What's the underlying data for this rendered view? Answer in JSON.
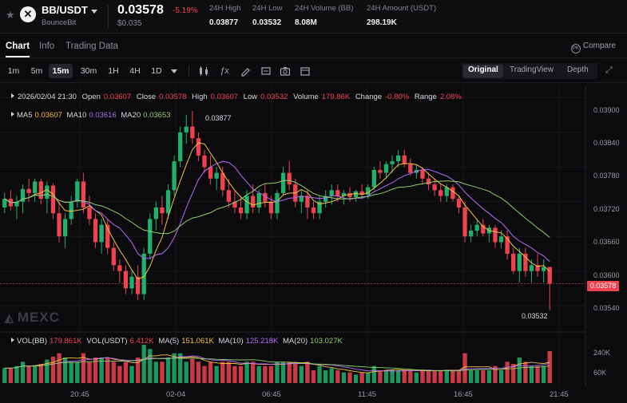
{
  "header": {
    "pair": "BB/USDT",
    "project": "BounceBit",
    "coin_glyph": "✕",
    "last_price": "0.03578",
    "change_pct": "-5.19%",
    "usd_price": "$0.035",
    "stats": [
      {
        "label": "24H High",
        "value": "0.03877"
      },
      {
        "label": "24H Low",
        "value": "0.03532"
      },
      {
        "label": "24H Volume (BB)",
        "value": "8.08M"
      },
      {
        "label": "24H Amount (USDT)",
        "value": "298.19K"
      }
    ]
  },
  "tabs": [
    "Chart",
    "Info",
    "Trading Data"
  ],
  "compare_label": "Compare",
  "compare_badge": "PK",
  "toolbar": {
    "timeframes": [
      "1m",
      "5m",
      "15m",
      "30m",
      "1H",
      "4H",
      "1D"
    ],
    "active_timeframe": "15m",
    "views": [
      "Original",
      "TradingView",
      "Depth"
    ],
    "active_view": "Original"
  },
  "ohlc": {
    "date": "2026/02/04 21:30",
    "open_label": "Open",
    "open": "0.03607",
    "close_label": "Close",
    "close": "0.03578",
    "high_label": "High",
    "high": "0.03607",
    "low_label": "Low",
    "low": "0.03532",
    "volume_label": "Volume",
    "volume": "179.86K",
    "change_label": "Change",
    "change": "-0.80%",
    "range_label": "Range",
    "range": "2.08%"
  },
  "ma": [
    {
      "label": "MA5",
      "value": "0.03607",
      "color": "#f5c242"
    },
    {
      "label": "MA10",
      "value": "0.03616",
      "color": "#b36cf2"
    },
    {
      "label": "MA20",
      "value": "0.03653",
      "color": "#8fcf6a"
    }
  ],
  "vol": {
    "bb_label": "VOL(BB)",
    "bb_value": "179.861K",
    "usdt_label": "VOL(USDT)",
    "usdt_value": "6.412K",
    "ma5_label": "MA(5)",
    "ma5_value": "151.061K",
    "ma10_label": "MA(10)",
    "ma10_value": "125.218K",
    "ma20_label": "MA(20)",
    "ma20_value": "103.027K"
  },
  "watermark": "MEXC",
  "price_tag": "0.03578",
  "high_marker": "0.03877",
  "low_marker": "0.03532",
  "y_axis": [
    "0.03900",
    "0.03840",
    "0.03780",
    "0.03720",
    "0.03660",
    "0.03600",
    "0.03540"
  ],
  "vol_axis": [
    "240K",
    "60K"
  ],
  "x_axis": [
    "20:45",
    "02-04",
    "06:45",
    "11:45",
    "16:45",
    "21:45"
  ],
  "colors": {
    "up": "#20b26c",
    "down": "#f0434f",
    "ma5": "#f5c242",
    "ma10": "#b36cf2",
    "ma20": "#8fcf6a"
  },
  "chart_data": {
    "type": "candlestick",
    "price_range": [
      0.035,
      0.0392
    ],
    "candles": [
      [
        0.0371,
        0.03735,
        0.037,
        0.03725
      ],
      [
        0.03725,
        0.0374,
        0.03705,
        0.03712
      ],
      [
        0.03712,
        0.0373,
        0.0369,
        0.0372
      ],
      [
        0.0372,
        0.0375,
        0.037,
        0.03742
      ],
      [
        0.03742,
        0.0376,
        0.0372,
        0.03735
      ],
      [
        0.03735,
        0.0376,
        0.0372,
        0.03755
      ],
      [
        0.03755,
        0.0376,
        0.03715,
        0.03725
      ],
      [
        0.03725,
        0.03755,
        0.037,
        0.03748
      ],
      [
        0.03748,
        0.03752,
        0.0369,
        0.037
      ],
      [
        0.037,
        0.0372,
        0.0365,
        0.0366
      ],
      [
        0.0366,
        0.037,
        0.0364,
        0.0369
      ],
      [
        0.0369,
        0.0373,
        0.0368,
        0.0372
      ],
      [
        0.0372,
        0.0376,
        0.0371,
        0.03755
      ],
      [
        0.03755,
        0.0377,
        0.037,
        0.0371
      ],
      [
        0.0371,
        0.0373,
        0.0368,
        0.0369
      ],
      [
        0.0369,
        0.037,
        0.0364,
        0.0365
      ],
      [
        0.0365,
        0.0369,
        0.0363,
        0.0368
      ],
      [
        0.0368,
        0.0369,
        0.0363,
        0.0364
      ],
      [
        0.0364,
        0.0365,
        0.036,
        0.0361
      ],
      [
        0.0361,
        0.0362,
        0.0358,
        0.036
      ],
      [
        0.036,
        0.0361,
        0.0356,
        0.0357
      ],
      [
        0.0357,
        0.036,
        0.0356,
        0.0359
      ],
      [
        0.0359,
        0.0361,
        0.0355,
        0.0356
      ],
      [
        0.0356,
        0.0364,
        0.0355,
        0.0363
      ],
      [
        0.0363,
        0.037,
        0.0362,
        0.0369
      ],
      [
        0.0369,
        0.0372,
        0.0367,
        0.0371
      ],
      [
        0.0371,
        0.0373,
        0.0368,
        0.037
      ],
      [
        0.037,
        0.0375,
        0.0369,
        0.0374
      ],
      [
        0.0374,
        0.038,
        0.0373,
        0.0379
      ],
      [
        0.0379,
        0.0385,
        0.0378,
        0.0384
      ],
      [
        0.0384,
        0.0387,
        0.0382,
        0.0385
      ],
      [
        0.0385,
        0.03877,
        0.0382,
        0.0383
      ],
      [
        0.0383,
        0.0384,
        0.0379,
        0.038
      ],
      [
        0.038,
        0.0381,
        0.0377,
        0.0378
      ],
      [
        0.0378,
        0.038,
        0.0375,
        0.0376
      ],
      [
        0.0376,
        0.0378,
        0.0374,
        0.0377
      ],
      [
        0.0377,
        0.0378,
        0.0373,
        0.0374
      ],
      [
        0.0374,
        0.0376,
        0.0371,
        0.0372
      ],
      [
        0.0372,
        0.0374,
        0.037,
        0.0371
      ],
      [
        0.0371,
        0.0373,
        0.0369,
        0.037
      ],
      [
        0.037,
        0.0374,
        0.0369,
        0.0373
      ],
      [
        0.0373,
        0.0375,
        0.037,
        0.0371
      ],
      [
        0.0371,
        0.0374,
        0.037,
        0.03735
      ],
      [
        0.03735,
        0.0375,
        0.0371,
        0.0372
      ],
      [
        0.0372,
        0.0373,
        0.0369,
        0.037
      ],
      [
        0.037,
        0.0374,
        0.0369,
        0.03735
      ],
      [
        0.03735,
        0.0378,
        0.0373,
        0.0377
      ],
      [
        0.0377,
        0.0379,
        0.0374,
        0.0375
      ],
      [
        0.0375,
        0.0376,
        0.0371,
        0.0372
      ],
      [
        0.0372,
        0.0374,
        0.037,
        0.0373
      ],
      [
        0.0373,
        0.0374,
        0.0369,
        0.0371
      ],
      [
        0.0371,
        0.0372,
        0.0369,
        0.037
      ],
      [
        0.037,
        0.0373,
        0.0369,
        0.0372
      ],
      [
        0.0372,
        0.0374,
        0.0371,
        0.0373
      ],
      [
        0.0373,
        0.0375,
        0.03715,
        0.0374
      ],
      [
        0.0374,
        0.0375,
        0.0372,
        0.0373
      ],
      [
        0.0373,
        0.0374,
        0.03715,
        0.03735
      ],
      [
        0.03735,
        0.03745,
        0.0372,
        0.03728
      ],
      [
        0.03728,
        0.0374,
        0.0372,
        0.03738
      ],
      [
        0.03738,
        0.0375,
        0.03725,
        0.03732
      ],
      [
        0.03732,
        0.0375,
        0.03725,
        0.03745
      ],
      [
        0.03745,
        0.0378,
        0.0374,
        0.03775
      ],
      [
        0.03775,
        0.0379,
        0.0376,
        0.0377
      ],
      [
        0.0377,
        0.0379,
        0.0376,
        0.03785
      ],
      [
        0.03785,
        0.038,
        0.0377,
        0.0379
      ],
      [
        0.0379,
        0.0381,
        0.0378,
        0.038
      ],
      [
        0.038,
        0.0381,
        0.0378,
        0.03785
      ],
      [
        0.03785,
        0.03795,
        0.03765,
        0.0377
      ],
      [
        0.0377,
        0.03785,
        0.0376,
        0.03775
      ],
      [
        0.03775,
        0.0378,
        0.0375,
        0.0376
      ],
      [
        0.0376,
        0.0377,
        0.0374,
        0.0375
      ],
      [
        0.0375,
        0.0376,
        0.0373,
        0.0374
      ],
      [
        0.0374,
        0.0375,
        0.0372,
        0.0373
      ],
      [
        0.0373,
        0.0375,
        0.0372,
        0.03745
      ],
      [
        0.03745,
        0.0375,
        0.0372,
        0.03725
      ],
      [
        0.03725,
        0.0373,
        0.037,
        0.0371
      ],
      [
        0.0371,
        0.0372,
        0.0365,
        0.0366
      ],
      [
        0.0366,
        0.0368,
        0.0365,
        0.0367
      ],
      [
        0.0367,
        0.0369,
        0.0366,
        0.0368
      ],
      [
        0.0368,
        0.0369,
        0.0366,
        0.03665
      ],
      [
        0.03665,
        0.0368,
        0.0365,
        0.03675
      ],
      [
        0.03675,
        0.0368,
        0.0364,
        0.0365
      ],
      [
        0.0365,
        0.0367,
        0.0364,
        0.0366
      ],
      [
        0.0366,
        0.0367,
        0.0362,
        0.0363
      ],
      [
        0.0363,
        0.0364,
        0.03595,
        0.036
      ],
      [
        0.036,
        0.0364,
        0.0358,
        0.0363
      ],
      [
        0.0363,
        0.0364,
        0.0359,
        0.036
      ],
      [
        0.036,
        0.0362,
        0.0358,
        0.0361
      ],
      [
        0.0361,
        0.0363,
        0.0359,
        0.036
      ],
      [
        0.036,
        0.0362,
        0.0358,
        0.03607
      ],
      [
        0.03607,
        0.03607,
        0.03532,
        0.03578
      ]
    ]
  }
}
